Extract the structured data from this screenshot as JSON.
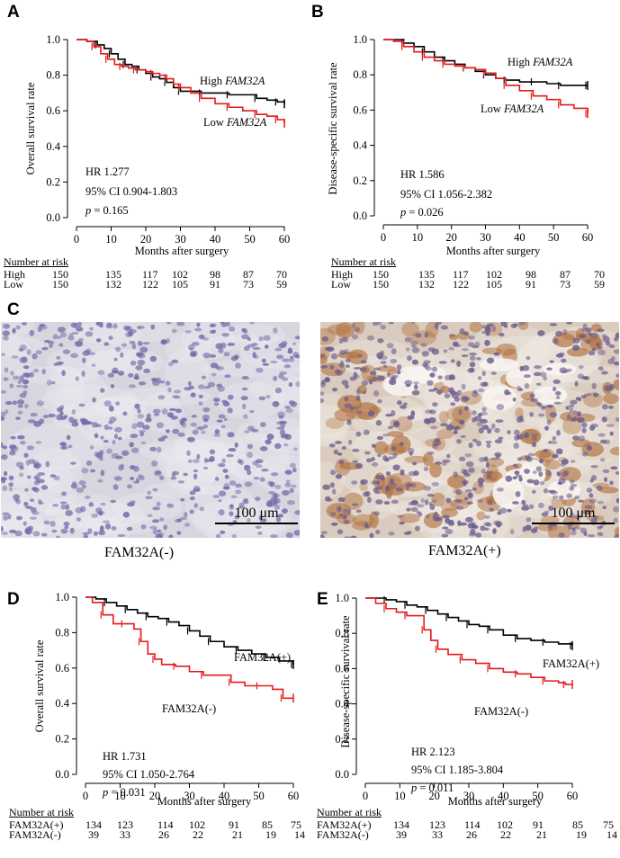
{
  "panels": {
    "A": {
      "letter": "A",
      "ylabel": "Overall survival rate",
      "xlabel": "Months after surgery",
      "label_high": "High",
      "label_low": "Low",
      "gene": "FAM32A",
      "stats": {
        "hr": "HR 1.277",
        "ci": "95% CI 0.904-1.803",
        "p_sym": "p",
        "p_val": "= 0.165"
      },
      "risk": {
        "title": "Number at risk",
        "rows": [
          {
            "label": "High",
            "values": [
              "150",
              "135",
              "117",
              "102",
              "98",
              "87",
              "70"
            ]
          },
          {
            "label": "Low",
            "values": [
              "150",
              "132",
              "122",
              "105",
              "91",
              "73",
              "59"
            ]
          }
        ]
      }
    },
    "B": {
      "letter": "B",
      "ylabel": "Disease-specific survival rate",
      "xlabel": "Months after surgery",
      "label_high": "High",
      "label_low": "Low",
      "gene": "FAM32A",
      "stats": {
        "hr": "HR 1.586",
        "ci": "95% CI 1.056-2.382",
        "p_sym": "p",
        "p_val": "= 0.026"
      },
      "risk": {
        "title": "Number at risk",
        "rows": [
          {
            "label": "High",
            "values": [
              "150",
              "135",
              "117",
              "102",
              "98",
              "87",
              "70"
            ]
          },
          {
            "label": "Low",
            "values": [
              "150",
              "132",
              "122",
              "105",
              "91",
              "73",
              "59"
            ]
          }
        ]
      }
    },
    "C": {
      "letter": "C",
      "left_caption": "FAM32A(-)",
      "right_caption": "FAM32A(+)",
      "scalebar": "100 μm"
    },
    "D": {
      "letter": "D",
      "ylabel": "Overall survival rate",
      "xlabel": "Months after surgery",
      "label_pos": "FAM32A(+)",
      "label_neg": "FAM32A(-)",
      "stats": {
        "hr": "HR 1.731",
        "ci": "95% CI 1.050-2.764",
        "p_sym": "p",
        "p_val": "= 0.031"
      },
      "risk": {
        "title": "Number at risk",
        "rows": [
          {
            "label": "FAM32A(+)",
            "values": [
              "134",
              "123",
              "114",
              "102",
              "91",
              "85",
              "75"
            ]
          },
          {
            "label": "FAM32A(-)",
            "values": [
              "39",
              "33",
              "26",
              "22",
              "21",
              "19",
              "14"
            ]
          }
        ]
      }
    },
    "E": {
      "letter": "E",
      "ylabel": "Disease-specific survival rate",
      "xlabel": "Months after surgery",
      "label_pos": "FAM32A(+)",
      "label_neg": "FAM32A(-)",
      "stats": {
        "hr": "HR 2.123",
        "ci": "95% CI 1.185-3.804",
        "p_sym": "p",
        "p_val": "= 0.011"
      },
      "risk": {
        "title": "Number at risk",
        "rows": [
          {
            "label": "FAM32A(+)",
            "values": [
              "134",
              "123",
              "114",
              "102",
              "91",
              "85",
              "75"
            ]
          },
          {
            "label": "FAM32A(-)",
            "values": [
              "39",
              "33",
              "26",
              "22",
              "21",
              "19",
              "14"
            ]
          }
        ]
      }
    }
  },
  "chart_data": [
    {
      "panel": "A",
      "type": "line",
      "xlabel": "Months after surgery",
      "ylabel": "Overall survival rate",
      "xlim": [
        0,
        60
      ],
      "ylim": [
        0,
        1.0
      ],
      "xticks": [
        0,
        10,
        20,
        30,
        40,
        50,
        60
      ],
      "yticks": [
        0.0,
        0.2,
        0.4,
        0.6,
        0.8,
        1.0
      ],
      "series": [
        {
          "name": "High FAM32A",
          "color": "#000000",
          "x": [
            0,
            3,
            6,
            8,
            10,
            12,
            14,
            16,
            18,
            20,
            22,
            24,
            26,
            28,
            30,
            33,
            36,
            40,
            44,
            48,
            52,
            55,
            58,
            60
          ],
          "y": [
            1.0,
            0.99,
            0.97,
            0.95,
            0.92,
            0.89,
            0.86,
            0.85,
            0.83,
            0.81,
            0.79,
            0.78,
            0.76,
            0.73,
            0.71,
            0.71,
            0.7,
            0.7,
            0.69,
            0.69,
            0.67,
            0.66,
            0.65,
            0.64
          ]
        },
        {
          "name": "Low FAM32A",
          "color": "#e41a1c",
          "x": [
            0,
            3,
            5,
            7,
            9,
            11,
            13,
            15,
            17,
            20,
            22,
            24,
            26,
            28,
            30,
            33,
            36,
            40,
            44,
            48,
            52,
            55,
            58,
            60
          ],
          "y": [
            1.0,
            0.99,
            0.96,
            0.92,
            0.89,
            0.86,
            0.85,
            0.84,
            0.83,
            0.82,
            0.81,
            0.8,
            0.78,
            0.75,
            0.73,
            0.7,
            0.67,
            0.64,
            0.62,
            0.6,
            0.58,
            0.57,
            0.55,
            0.53
          ]
        }
      ]
    },
    {
      "panel": "B",
      "type": "line",
      "xlabel": "Months after surgery",
      "ylabel": "Disease-specific survival rate",
      "xlim": [
        0,
        60
      ],
      "ylim": [
        0,
        1.0
      ],
      "xticks": [
        0,
        10,
        20,
        30,
        40,
        50,
        60
      ],
      "yticks": [
        0.0,
        0.2,
        0.4,
        0.6,
        0.8,
        1.0
      ],
      "series": [
        {
          "name": "High FAM32A",
          "color": "#000000",
          "x": [
            0,
            3,
            6,
            9,
            12,
            15,
            18,
            21,
            24,
            27,
            30,
            33,
            36,
            40,
            44,
            48,
            52,
            56,
            60
          ],
          "y": [
            1.0,
            1.0,
            0.98,
            0.96,
            0.93,
            0.9,
            0.88,
            0.86,
            0.84,
            0.82,
            0.8,
            0.78,
            0.77,
            0.76,
            0.76,
            0.75,
            0.74,
            0.74,
            0.74
          ]
        },
        {
          "name": "Low FAM32A",
          "color": "#e41a1c",
          "x": [
            0,
            3,
            6,
            9,
            12,
            15,
            18,
            21,
            24,
            27,
            30,
            33,
            36,
            40,
            44,
            48,
            52,
            56,
            60
          ],
          "y": [
            1.0,
            0.99,
            0.96,
            0.93,
            0.9,
            0.88,
            0.86,
            0.85,
            0.84,
            0.83,
            0.81,
            0.78,
            0.74,
            0.71,
            0.68,
            0.66,
            0.63,
            0.61,
            0.58
          ]
        }
      ]
    },
    {
      "panel": "D",
      "type": "line",
      "xlabel": "Months after surgery",
      "ylabel": "Overall survival rate",
      "xlim": [
        0,
        60
      ],
      "ylim": [
        0,
        1.0
      ],
      "xticks": [
        0,
        10,
        20,
        30,
        40,
        50,
        60
      ],
      "yticks": [
        0.0,
        0.2,
        0.4,
        0.6,
        0.8,
        1.0
      ],
      "series": [
        {
          "name": "FAM32A(+)",
          "color": "#000000",
          "x": [
            0,
            3,
            6,
            9,
            12,
            15,
            18,
            21,
            24,
            27,
            30,
            33,
            36,
            40,
            44,
            48,
            52,
            56,
            60
          ],
          "y": [
            1.0,
            0.99,
            0.97,
            0.95,
            0.93,
            0.91,
            0.89,
            0.88,
            0.86,
            0.84,
            0.81,
            0.78,
            0.75,
            0.72,
            0.7,
            0.68,
            0.66,
            0.64,
            0.62
          ]
        },
        {
          "name": "FAM32A(-)",
          "color": "#e41a1c",
          "x": [
            0,
            2,
            5,
            8,
            11,
            14,
            16,
            18,
            20,
            22,
            26,
            30,
            34,
            38,
            42,
            46,
            50,
            54,
            57,
            60
          ],
          "y": [
            1.0,
            0.97,
            0.9,
            0.85,
            0.85,
            0.82,
            0.75,
            0.68,
            0.65,
            0.62,
            0.61,
            0.58,
            0.56,
            0.56,
            0.52,
            0.5,
            0.5,
            0.48,
            0.43,
            0.43
          ]
        }
      ]
    },
    {
      "panel": "E",
      "type": "line",
      "xlabel": "Months after surgery",
      "ylabel": "Disease-specific survival rate",
      "xlim": [
        0,
        60
      ],
      "ylim": [
        0,
        1.0
      ],
      "xticks": [
        0,
        10,
        20,
        30,
        40,
        50,
        60
      ],
      "yticks": [
        0.0,
        0.2,
        0.4,
        0.6,
        0.8,
        1.0
      ],
      "series": [
        {
          "name": "FAM32A(+)",
          "color": "#000000",
          "x": [
            0,
            3,
            6,
            9,
            12,
            15,
            18,
            21,
            24,
            27,
            30,
            33,
            36,
            40,
            44,
            48,
            52,
            56,
            60
          ],
          "y": [
            1.0,
            1.0,
            0.99,
            0.98,
            0.96,
            0.95,
            0.93,
            0.91,
            0.89,
            0.87,
            0.85,
            0.84,
            0.82,
            0.79,
            0.77,
            0.76,
            0.75,
            0.74,
            0.73
          ]
        },
        {
          "name": "FAM32A(-)",
          "color": "#e41a1c",
          "x": [
            0,
            3,
            6,
            9,
            12,
            15,
            17,
            19,
            21,
            24,
            28,
            32,
            36,
            40,
            44,
            48,
            52,
            56,
            58,
            60
          ],
          "y": [
            1.0,
            0.97,
            0.94,
            0.92,
            0.9,
            0.9,
            0.82,
            0.76,
            0.71,
            0.68,
            0.65,
            0.63,
            0.6,
            0.58,
            0.57,
            0.55,
            0.53,
            0.52,
            0.51,
            0.51
          ]
        }
      ]
    }
  ]
}
